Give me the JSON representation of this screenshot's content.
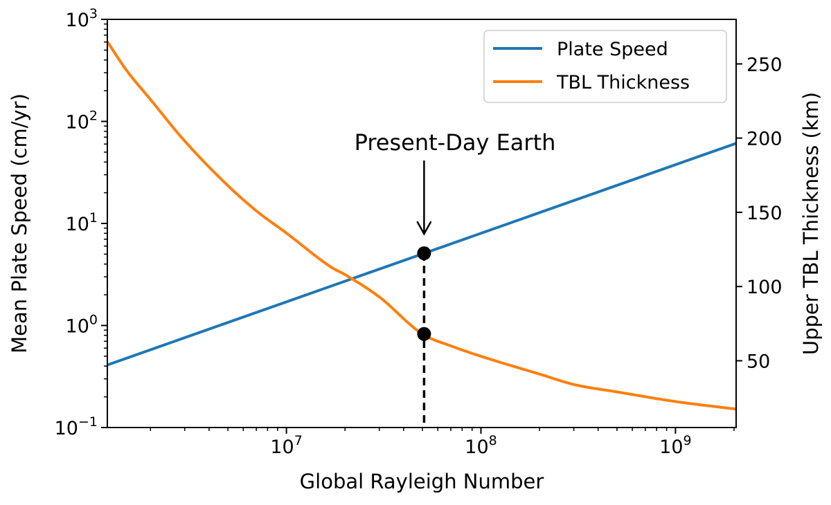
{
  "chart_data": {
    "type": "line",
    "title": "",
    "xlabel": "Global Rayleigh Number",
    "ylabel": "Mean Plate Speed (cm/yr)",
    "y2label": "Upper TBL Thickness (km)",
    "xscale": "log",
    "yscale": "log",
    "y2scale": "linear",
    "xlim": [
      1200000,
      2050000000
    ],
    "ylim": [
      0.1,
      1000
    ],
    "y2lim": [
      5,
      280
    ],
    "x_ticks": [
      {
        "value": 10000000,
        "base": "10",
        "exp": "7"
      },
      {
        "value": 100000000,
        "base": "10",
        "exp": "8"
      },
      {
        "value": 1000000000,
        "base": "10",
        "exp": "9"
      }
    ],
    "y_ticks": [
      {
        "value": 0.1,
        "base": "10",
        "exp": "−1"
      },
      {
        "value": 1,
        "base": "10",
        "exp": "0"
      },
      {
        "value": 10,
        "base": "10",
        "exp": "1"
      },
      {
        "value": 100,
        "base": "10",
        "exp": "2"
      },
      {
        "value": 1000,
        "base": "10",
        "exp": "3"
      }
    ],
    "y2_ticks": [
      {
        "value": 50,
        "label": "50"
      },
      {
        "value": 100,
        "label": "100"
      },
      {
        "value": 150,
        "label": "150"
      },
      {
        "value": 200,
        "label": "200"
      },
      {
        "value": 250,
        "label": "250"
      }
    ],
    "legend_position": "top-right",
    "series": [
      {
        "name": "Plate Speed",
        "axis": "left",
        "color": "#1f77b4",
        "x": [
          1200000,
          2050000000
        ],
        "y": [
          0.41,
          61
        ]
      },
      {
        "name": "TBL Thickness",
        "axis": "right",
        "color": "#ff7f0e",
        "x": [
          1200000,
          1500000,
          2000000,
          3000000,
          5000000,
          7000000,
          10000000,
          17000000,
          20000000,
          30000000,
          50000000,
          70000000,
          100000000,
          200000000,
          300000000,
          500000000,
          1000000000,
          2050000000
        ],
        "y": [
          265,
          246,
          226,
          198,
          168,
          151,
          136,
          113,
          108,
          93,
          68,
          60,
          53,
          41,
          34,
          29,
          22.5,
          17.4
        ]
      }
    ],
    "markers": [
      {
        "axis": "left",
        "x": 51000000,
        "y": 5.1
      },
      {
        "axis": "right",
        "x": 51000000,
        "y": 68
      }
    ],
    "annotation": {
      "text": "Present-Day Earth",
      "x": 51000000,
      "target_y": 5.1
    }
  }
}
